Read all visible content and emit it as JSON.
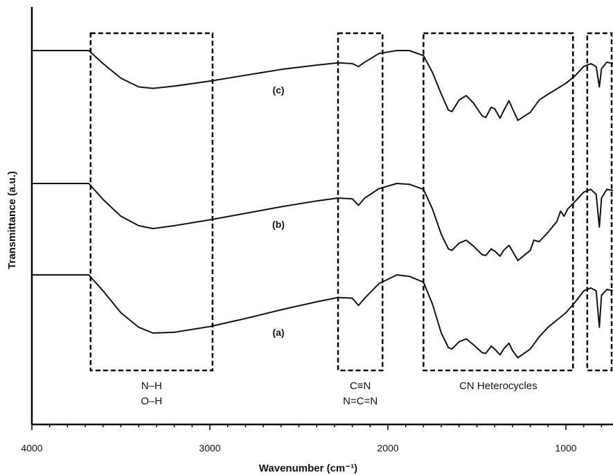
{
  "chart_data": {
    "type": "line",
    "title": "",
    "xlabel": "Wavenumber (cm⁻¹)",
    "ylabel": "Transmittance (a.u.)",
    "xlim": [
      4000,
      730
    ],
    "x_reversed": true,
    "xticks": [
      "4000",
      "3000",
      "2000",
      "1000"
    ],
    "y_tick_labels": false,
    "grid": false,
    "series": [
      {
        "name": "(c)",
        "points": [
          [
            4000,
            0.0
          ],
          [
            3800,
            0.0
          ],
          [
            3680,
            0.0
          ],
          [
            3600,
            -0.18
          ],
          [
            3500,
            -0.38
          ],
          [
            3400,
            -0.5
          ],
          [
            3320,
            -0.52
          ],
          [
            3200,
            -0.49
          ],
          [
            3000,
            -0.42
          ],
          [
            2800,
            -0.34
          ],
          [
            2600,
            -0.26
          ],
          [
            2400,
            -0.2
          ],
          [
            2280,
            -0.17
          ],
          [
            2200,
            -0.18
          ],
          [
            2165,
            -0.22
          ],
          [
            2130,
            -0.16
          ],
          [
            2050,
            -0.04
          ],
          [
            1950,
            0.0
          ],
          [
            1880,
            0.0
          ],
          [
            1800,
            -0.07
          ],
          [
            1750,
            -0.3
          ],
          [
            1700,
            -0.6
          ],
          [
            1660,
            -0.82
          ],
          [
            1640,
            -0.84
          ],
          [
            1600,
            -0.68
          ],
          [
            1560,
            -0.62
          ],
          [
            1520,
            -0.72
          ],
          [
            1470,
            -0.9
          ],
          [
            1450,
            -0.92
          ],
          [
            1420,
            -0.78
          ],
          [
            1400,
            -0.8
          ],
          [
            1370,
            -0.93
          ],
          [
            1350,
            -0.83
          ],
          [
            1320,
            -0.69
          ],
          [
            1300,
            -0.8
          ],
          [
            1270,
            -0.96
          ],
          [
            1200,
            -0.85
          ],
          [
            1150,
            -0.68
          ],
          [
            1100,
            -0.6
          ],
          [
            1000,
            -0.45
          ],
          [
            950,
            -0.35
          ],
          [
            900,
            -0.22
          ],
          [
            860,
            -0.18
          ],
          [
            830,
            -0.22
          ],
          [
            812,
            -0.5
          ],
          [
            800,
            -0.25
          ],
          [
            770,
            -0.16
          ],
          [
            730,
            -0.18
          ]
        ]
      },
      {
        "name": "(b)",
        "points": [
          [
            4000,
            0.0
          ],
          [
            3800,
            0.0
          ],
          [
            3680,
            0.0
          ],
          [
            3600,
            -0.22
          ],
          [
            3500,
            -0.45
          ],
          [
            3400,
            -0.58
          ],
          [
            3320,
            -0.62
          ],
          [
            3200,
            -0.58
          ],
          [
            3000,
            -0.5
          ],
          [
            2800,
            -0.41
          ],
          [
            2600,
            -0.32
          ],
          [
            2400,
            -0.24
          ],
          [
            2280,
            -0.2
          ],
          [
            2200,
            -0.21
          ],
          [
            2165,
            -0.3
          ],
          [
            2130,
            -0.2
          ],
          [
            2050,
            -0.07
          ],
          [
            1950,
            0.0
          ],
          [
            1880,
            -0.01
          ],
          [
            1800,
            -0.08
          ],
          [
            1750,
            -0.35
          ],
          [
            1700,
            -0.7
          ],
          [
            1660,
            -0.9
          ],
          [
            1640,
            -0.92
          ],
          [
            1600,
            -0.82
          ],
          [
            1560,
            -0.78
          ],
          [
            1520,
            -0.86
          ],
          [
            1470,
            -0.98
          ],
          [
            1450,
            -0.99
          ],
          [
            1420,
            -0.9
          ],
          [
            1400,
            -0.93
          ],
          [
            1370,
            -1.0
          ],
          [
            1350,
            -0.92
          ],
          [
            1320,
            -0.85
          ],
          [
            1300,
            -0.93
          ],
          [
            1270,
            -1.06
          ],
          [
            1200,
            -0.92
          ],
          [
            1180,
            -0.78
          ],
          [
            1150,
            -0.8
          ],
          [
            1100,
            -0.67
          ],
          [
            1050,
            -0.52
          ],
          [
            1030,
            -0.38
          ],
          [
            1010,
            -0.45
          ],
          [
            990,
            -0.35
          ],
          [
            950,
            -0.25
          ],
          [
            900,
            -0.12
          ],
          [
            860,
            -0.08
          ],
          [
            830,
            -0.15
          ],
          [
            812,
            -0.6
          ],
          [
            800,
            -0.2
          ],
          [
            770,
            -0.08
          ],
          [
            730,
            -0.1
          ]
        ]
      },
      {
        "name": "(a)",
        "points": [
          [
            4000,
            0.0
          ],
          [
            3800,
            0.0
          ],
          [
            3680,
            0.0
          ],
          [
            3600,
            -0.22
          ],
          [
            3500,
            -0.52
          ],
          [
            3400,
            -0.72
          ],
          [
            3320,
            -0.8
          ],
          [
            3200,
            -0.79
          ],
          [
            3000,
            -0.71
          ],
          [
            2800,
            -0.6
          ],
          [
            2600,
            -0.48
          ],
          [
            2400,
            -0.37
          ],
          [
            2280,
            -0.31
          ],
          [
            2200,
            -0.32
          ],
          [
            2165,
            -0.42
          ],
          [
            2130,
            -0.32
          ],
          [
            2050,
            -0.12
          ],
          [
            1950,
            0.0
          ],
          [
            1880,
            -0.02
          ],
          [
            1800,
            -0.1
          ],
          [
            1750,
            -0.4
          ],
          [
            1700,
            -0.8
          ],
          [
            1660,
            -1.0
          ],
          [
            1640,
            -1.02
          ],
          [
            1600,
            -0.92
          ],
          [
            1560,
            -0.88
          ],
          [
            1520,
            -0.96
          ],
          [
            1470,
            -1.07
          ],
          [
            1450,
            -1.08
          ],
          [
            1420,
            -0.98
          ],
          [
            1400,
            -1.02
          ],
          [
            1370,
            -1.1
          ],
          [
            1350,
            -1.02
          ],
          [
            1320,
            -0.94
          ],
          [
            1300,
            -1.04
          ],
          [
            1270,
            -1.14
          ],
          [
            1200,
            -1.02
          ],
          [
            1150,
            -0.85
          ],
          [
            1100,
            -0.72
          ],
          [
            1000,
            -0.52
          ],
          [
            950,
            -0.38
          ],
          [
            900,
            -0.22
          ],
          [
            860,
            -0.18
          ],
          [
            830,
            -0.22
          ],
          [
            812,
            -0.72
          ],
          [
            800,
            -0.28
          ],
          [
            770,
            -0.2
          ],
          [
            730,
            -0.22
          ]
        ]
      }
    ],
    "regions": [
      {
        "x": [
          3670,
          2985
        ],
        "labels": [
          "N–H",
          "O–H"
        ]
      },
      {
        "x": [
          2280,
          2030
        ],
        "labels": [
          "C≡N",
          "N=C=N"
        ]
      },
      {
        "x": [
          1800,
          960
        ],
        "labels": [
          "CN Heterocycles"
        ]
      },
      {
        "x": [
          880,
          730
        ],
        "labels": []
      }
    ]
  }
}
